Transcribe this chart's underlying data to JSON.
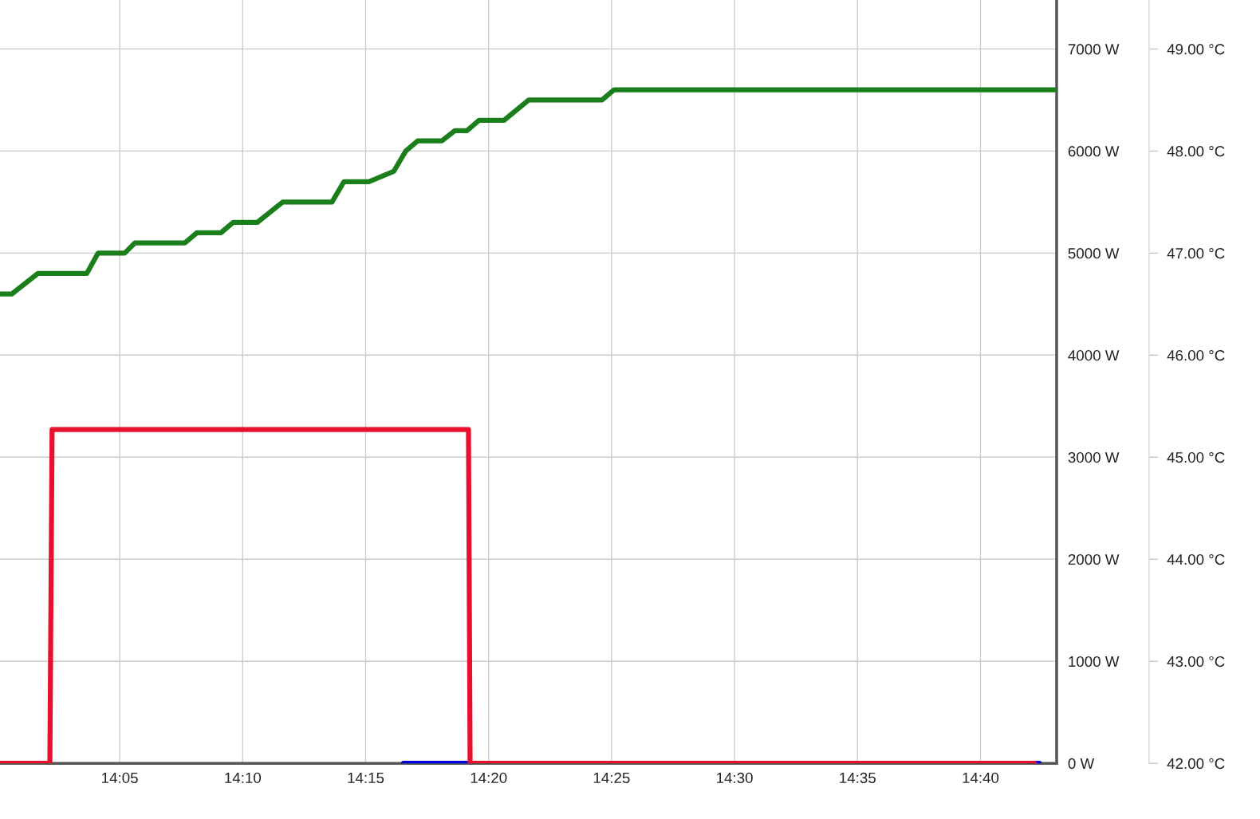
{
  "chart_data": {
    "type": "line",
    "xlim": [
      14.0022,
      14.7183
    ],
    "xticks": [
      {
        "value": 14.08333,
        "label": "14:05"
      },
      {
        "value": 14.16667,
        "label": "14:10"
      },
      {
        "value": 14.25,
        "label": "14:15"
      },
      {
        "value": 14.33333,
        "label": "14:20"
      },
      {
        "value": 14.41667,
        "label": "14:25"
      },
      {
        "value": 14.5,
        "label": "14:30"
      },
      {
        "value": 14.58333,
        "label": "14:35"
      },
      {
        "value": 14.66667,
        "label": "14:40"
      }
    ],
    "ylim": [
      0,
      7480
    ],
    "yticks": [
      {
        "value": 0,
        "label": "0 W"
      },
      {
        "value": 1000,
        "label": "1000 W"
      },
      {
        "value": 2000,
        "label": "2000 W"
      },
      {
        "value": 3000,
        "label": "3000 W"
      },
      {
        "value": 4000,
        "label": "4000 W"
      },
      {
        "value": 5000,
        "label": "5000 W"
      },
      {
        "value": 6000,
        "label": "6000 W"
      },
      {
        "value": 7000,
        "label": "7000 W"
      }
    ],
    "y2lim": [
      42,
      49.48
    ],
    "y2ticks": [
      {
        "value": 42,
        "label": "42.00 °C"
      },
      {
        "value": 43,
        "label": "43.00 °C"
      },
      {
        "value": 44,
        "label": "44.00 °C"
      },
      {
        "value": 45,
        "label": "45.00 °C"
      },
      {
        "value": 46,
        "label": "46.00 °C"
      },
      {
        "value": 47,
        "label": "47.00 °C"
      },
      {
        "value": 48,
        "label": "48.00 °C"
      },
      {
        "value": 49,
        "label": "49.00 °C"
      }
    ],
    "grid": true,
    "line_style": "solid",
    "series": [
      {
        "color": "#1a7f1a",
        "axis": "y2",
        "x": [
          14.0022,
          14.0103,
          14.0278,
          14.061,
          14.0687,
          14.0867,
          14.0937,
          14.1275,
          14.1357,
          14.152,
          14.1602,
          14.1765,
          14.1938,
          14.2272,
          14.2353,
          14.2522,
          14.269,
          14.2772,
          14.2853,
          14.3017,
          14.3105,
          14.3187,
          14.3268,
          14.3437,
          14.3605,
          14.4102,
          14.4183,
          14.7173
        ],
        "values": [
          46.6,
          46.6,
          46.8,
          46.8,
          47.0,
          47.0,
          47.1,
          47.1,
          47.2,
          47.2,
          47.3,
          47.3,
          47.5,
          47.5,
          47.7,
          47.7,
          47.8,
          48.0,
          48.1,
          48.1,
          48.2,
          48.2,
          48.3,
          48.3,
          48.5,
          48.5,
          48.6,
          48.6
        ]
      },
      {
        "color": "#0000e0",
        "x": [
          14.2757,
          14.3197,
          14.5,
          14.7032,
          14.7065
        ],
        "values": [
          0,
          0,
          null,
          0,
          0
        ]
      },
      {
        "color": "#e8102c",
        "x": [
          14.0022,
          14.036,
          14.0375,
          14.3197,
          14.3208,
          14.7032
        ],
        "values": [
          0,
          0,
          3270,
          3270,
          0,
          0
        ]
      }
    ]
  }
}
